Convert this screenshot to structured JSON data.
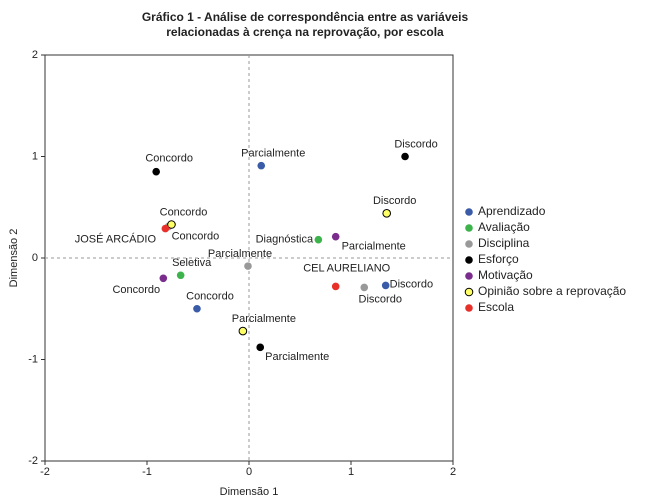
{
  "chart_data": {
    "type": "scatter",
    "title": [
      "Gráfico 1 - Análise de correspondência entre as variáveis",
      "relacionadas à crença na reprovação, por escola"
    ],
    "x_label": "Dimensão 1",
    "y_label": "Dimensão 2",
    "xlim": [
      -2,
      2
    ],
    "ylim": [
      -2,
      2
    ],
    "xticks": [
      -2,
      -1,
      0,
      1,
      2
    ],
    "yticks": [
      -2,
      -1,
      0,
      1,
      2
    ],
    "legend": "right",
    "series": [
      {
        "name": "Aprendizado",
        "color": "#3a5ba8",
        "x": [
          0.12,
          1.34,
          -0.51
        ],
        "y": [
          0.91,
          -0.27,
          -0.5
        ],
        "labels": [
          "Parcialmente",
          "Discordo",
          "Concordo"
        ]
      },
      {
        "name": "Avaliação",
        "color": "#3cb44b",
        "x": [
          0.68,
          -0.67
        ],
        "y": [
          0.18,
          -0.17
        ],
        "labels": [
          "Diagnóstica",
          "Seletiva"
        ]
      },
      {
        "name": "Disciplina",
        "color": "#999999",
        "x": [
          -0.01,
          1.13,
          -0.79
        ],
        "y": [
          -0.08,
          -0.29,
          0.31
        ],
        "labels": [
          "Parcialmente",
          "Discordo",
          "Concordo"
        ]
      },
      {
        "name": "Esforço",
        "color": "#000000",
        "x": [
          -0.91,
          1.53,
          0.11
        ],
        "y": [
          0.85,
          1.0,
          -0.88
        ],
        "labels": [
          "Concordo",
          "Discordo",
          "Parcialmente"
        ]
      },
      {
        "name": "Motivação",
        "color": "#7b2d8e",
        "x": [
          0.85,
          -0.84
        ],
        "y": [
          0.21,
          -0.2
        ],
        "labels": [
          "Parcialmente",
          "Concordo"
        ]
      },
      {
        "name": "Opinião sobre a reprovação",
        "color": "#ffff66",
        "x": [
          -0.76,
          1.35,
          -0.06
        ],
        "y": [
          0.33,
          0.44,
          -0.72
        ],
        "labels": [
          "Concordo",
          "Discordo",
          "Parcialmente"
        ]
      },
      {
        "name": "Escola",
        "color": "#e8302a",
        "x": [
          -0.82,
          0.85
        ],
        "y": [
          0.29,
          -0.28
        ],
        "labels": [
          "JOSÉ ARCÁDIO",
          "CEL AURELIANO"
        ]
      }
    ]
  }
}
